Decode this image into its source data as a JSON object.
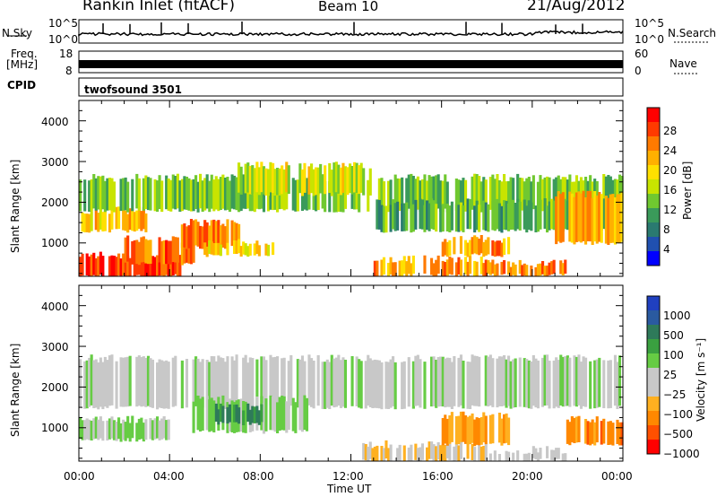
{
  "header": {
    "station": "Rankin Inlet (fitACF)",
    "beam": "Beam 10",
    "date": "21/Aug/2012"
  },
  "panels": {
    "nsky": {
      "label": "N.Sky",
      "right_label": "N.Search",
      "left_ticks": [
        "10^5",
        "10^0"
      ],
      "right_ticks": [
        "10^5",
        "10^0"
      ]
    },
    "freq": {
      "label_line1": "Freq.",
      "label_line2": "[MHz]",
      "right_label": "Nave",
      "left_ticks": [
        "18",
        "8"
      ],
      "right_ticks": [
        "60",
        "0"
      ]
    },
    "cpid": {
      "label": "CPID",
      "value": "twofsound 3501"
    }
  },
  "power_colorbar": {
    "label": "Power [dB]",
    "ticks": [
      "28",
      "24",
      "20",
      "16",
      "12",
      "8",
      "4"
    ],
    "colors": [
      "#ff0000",
      "#ff3a00",
      "#ff7a00",
      "#ffb000",
      "#ffe000",
      "#c8e400",
      "#70c830",
      "#3a9a5a",
      "#2a7a70",
      "#2050b0",
      "#0000ff"
    ]
  },
  "velocity_colorbar": {
    "label": "Velocity [m s⁻¹]",
    "ticks": [
      "1000",
      "500",
      "100",
      "25",
      "−25",
      "−100",
      "−500",
      "−1000"
    ],
    "colors": [
      "#2040c0",
      "#2a5aa0",
      "#2e7a5a",
      "#3aa040",
      "#66cc44",
      "#c8c8c8",
      "#c8c8c8",
      "#ffb020",
      "#ff8800",
      "#ff5000",
      "#ff0000"
    ]
  },
  "axes": {
    "xlabel": "Time UT",
    "ylabel": "Slant Range [km]",
    "x_ticks": [
      "00:00",
      "04:00",
      "08:00",
      "12:00",
      "16:00",
      "20:00",
      "00:00"
    ],
    "y_ticks": [
      "1000",
      "2000",
      "3000",
      "4000"
    ]
  },
  "chart_data": [
    {
      "type": "heatmap",
      "title": "",
      "quantity": "Power [dB]",
      "xlabel": "",
      "ylabel": "Slant Range [km]",
      "xlim": [
        "00:00",
        "24:00"
      ],
      "ylim": [
        180,
        4500
      ],
      "clim": [
        0,
        30
      ],
      "bands": [
        {
          "t0": 0.0,
          "t1": 4.5,
          "r0": 180,
          "r1": 700,
          "v": 27
        },
        {
          "t0": 2.0,
          "t1": 5.0,
          "r0": 500,
          "r1": 1100,
          "v": 25
        },
        {
          "t0": 4.5,
          "t1": 7.0,
          "r0": 900,
          "r1": 1500,
          "v": 24
        },
        {
          "t0": 5.5,
          "t1": 8.5,
          "r0": 700,
          "r1": 1000,
          "v": 18
        },
        {
          "t0": 0.0,
          "t1": 3.0,
          "r0": 1300,
          "r1": 1800,
          "v": 20
        },
        {
          "t0": 0.0,
          "t1": 24.0,
          "r0": 1800,
          "r1": 2600,
          "v": 12
        },
        {
          "t0": 7.0,
          "t1": 13.0,
          "r0": 2200,
          "r1": 2900,
          "v": 16
        },
        {
          "t0": 13.0,
          "t1": 24.0,
          "r0": 1300,
          "r1": 2000,
          "v": 10
        },
        {
          "t0": 13.0,
          "t1": 18.0,
          "r0": 200,
          "r1": 600,
          "v": 22
        },
        {
          "t0": 16.0,
          "t1": 19.0,
          "r0": 700,
          "r1": 1100,
          "v": 22
        },
        {
          "t0": 18.0,
          "t1": 21.5,
          "r0": 200,
          "r1": 500,
          "v": 24
        },
        {
          "t0": 21.0,
          "t1": 24.0,
          "r0": 1000,
          "r1": 2200,
          "v": 22
        }
      ]
    },
    {
      "type": "heatmap",
      "title": "",
      "quantity": "Velocity [m s⁻¹]",
      "xlabel": "Time UT",
      "ylabel": "Slant Range [km]",
      "xlim": [
        "00:00",
        "24:00"
      ],
      "ylim": [
        180,
        4500
      ],
      "clim": [
        -1000,
        1000
      ],
      "bands": [
        {
          "t0": 0.0,
          "t1": 24.0,
          "r0": 1500,
          "r1": 2700,
          "v": 0
        },
        {
          "t0": 0.0,
          "t1": 4.0,
          "r0": 700,
          "r1": 1200,
          "v": 120
        },
        {
          "t0": 5.0,
          "t1": 10.0,
          "r0": 900,
          "r1": 1700,
          "v": 150
        },
        {
          "t0": 6.0,
          "t1": 8.0,
          "r0": 1100,
          "r1": 1500,
          "v": 500
        },
        {
          "t0": 12.5,
          "t1": 18.0,
          "r0": 200,
          "r1": 600,
          "v": -300
        },
        {
          "t0": 16.0,
          "t1": 19.0,
          "r0": 600,
          "r1": 1300,
          "v": -500
        },
        {
          "t0": 18.0,
          "t1": 21.5,
          "r0": 200,
          "r1": 450,
          "v": -150
        },
        {
          "t0": 21.5,
          "t1": 24.0,
          "r0": 600,
          "r1": 1200,
          "v": -600
        }
      ]
    }
  ]
}
